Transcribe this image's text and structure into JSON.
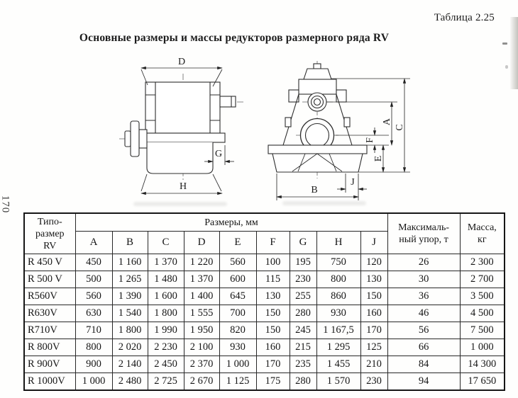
{
  "page": {
    "number": "170"
  },
  "header": {
    "table_label": "Таблица 2.25",
    "title": "Основные размеры и массы редукторов размерного ряда RV"
  },
  "figure": {
    "labels": {
      "d": "D",
      "g": "G",
      "h": "H",
      "a": "A",
      "c": "C",
      "f": "F",
      "e": "E",
      "b": "B",
      "j": "J"
    }
  },
  "table": {
    "col1_header_lines": [
      "Типо-",
      "размер",
      "RV"
    ],
    "group_header": "Размеры, мм",
    "dim_cols": [
      "A",
      "B",
      "C",
      "D",
      "E",
      "F",
      "G",
      "H",
      "J"
    ],
    "thrust_header_lines": [
      "Максималь-",
      "ный упор, т"
    ],
    "mass_header_lines": [
      "Масса,",
      "кг"
    ],
    "rows": [
      {
        "type": "R 450 V",
        "dims": [
          "450",
          "1 160",
          "1 370",
          "1 220",
          "560",
          "100",
          "195",
          "750",
          "120"
        ],
        "thrust": "26",
        "mass": "2 300"
      },
      {
        "type": "R 500 V",
        "dims": [
          "500",
          "1 265",
          "1 480",
          "1 370",
          "600",
          "115",
          "230",
          "800",
          "130"
        ],
        "thrust": "30",
        "mass": "2 700"
      },
      {
        "type": "R560V",
        "dims": [
          "560",
          "1 390",
          "1 600",
          "1 400",
          "645",
          "130",
          "255",
          "860",
          "150"
        ],
        "thrust": "36",
        "mass": "3 500"
      },
      {
        "type": "R630V",
        "dims": [
          "630",
          "1 540",
          "1 800",
          "1 555",
          "700",
          "150",
          "280",
          "930",
          "160"
        ],
        "thrust": "46",
        "mass": "4 500"
      },
      {
        "type": "R710V",
        "dims": [
          "710",
          "1 800",
          "1 990",
          "1 950",
          "820",
          "150",
          "245",
          "1 167,5",
          "170"
        ],
        "thrust": "56",
        "mass": "7 500"
      },
      {
        "type": "R 800V",
        "dims": [
          "800",
          "2 020",
          "2 230",
          "2 100",
          "930",
          "160",
          "215",
          "1 295",
          "125"
        ],
        "thrust": "66",
        "mass": "1 000"
      },
      {
        "type": "R 900V",
        "dims": [
          "900",
          "2 140",
          "2 450",
          "2 370",
          "1 000",
          "170",
          "235",
          "1 455",
          "210"
        ],
        "thrust": "84",
        "mass": "14 300"
      },
      {
        "type": "R 1000V",
        "dims": [
          "1 000",
          "2 480",
          "2 725",
          "2 670",
          "1 125",
          "175",
          "280",
          "1 570",
          "230"
        ],
        "thrust": "94",
        "mass": "17 650"
      }
    ]
  }
}
